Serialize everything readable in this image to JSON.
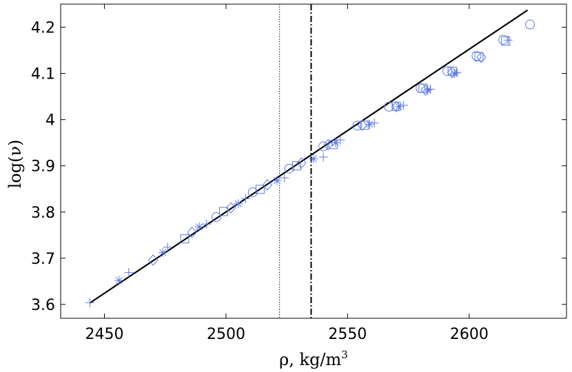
{
  "chart_data": {
    "type": "scatter",
    "title": "",
    "xlabel": "ρ, kg/m",
    "xlabel_sup": "3",
    "ylabel": "log(ν)",
    "xlim": [
      2432,
      2640
    ],
    "ylim": [
      3.57,
      4.25
    ],
    "xticks": [
      2450,
      2500,
      2550,
      2600
    ],
    "yticks": [
      3.6,
      3.7,
      3.8,
      3.9,
      4,
      4.1,
      4.2
    ],
    "ytick_labels": [
      "3.6",
      "3.7",
      "3.8",
      "3.9",
      "4",
      "4.1",
      "4.2"
    ],
    "grid": false,
    "legend": "none",
    "marker_color": "#5a78e6",
    "fit_line": {
      "color": "#000000",
      "points": [
        [
          2444,
          3.603
        ],
        [
          2624,
          4.237
        ]
      ]
    },
    "vlines": [
      {
        "name": "vline-dotted",
        "x": 2522,
        "style": "dotted",
        "color": "#000000"
      },
      {
        "name": "vline-dashdot",
        "x": 2535,
        "style": "dashdot",
        "color": "#000000"
      }
    ],
    "series": [
      {
        "marker": "plus",
        "points": [
          [
            2444,
            3.604
          ],
          [
            2460,
            3.669
          ],
          [
            2476,
            3.724
          ],
          [
            2492,
            3.774
          ],
          [
            2508,
            3.829
          ],
          [
            2524,
            3.874
          ],
          [
            2540,
            3.919
          ],
          [
            2547,
            3.956
          ],
          [
            2561,
            3.993
          ],
          [
            2573,
            4.031
          ],
          [
            2584,
            4.066
          ],
          [
            2595,
            4.102
          ],
          [
            2616,
            4.172
          ]
        ]
      },
      {
        "marker": "star",
        "points": [
          [
            2456,
            3.652
          ],
          [
            2474,
            3.712
          ],
          [
            2489,
            3.768
          ],
          [
            2505,
            3.818
          ],
          [
            2521,
            3.868
          ],
          [
            2536,
            3.915
          ],
          [
            2545,
            3.95
          ],
          [
            2559,
            3.99
          ],
          [
            2571,
            4.028
          ],
          [
            2583,
            4.064
          ],
          [
            2594,
            4.1
          ]
        ]
      },
      {
        "marker": "diamond",
        "points": [
          [
            2470,
            3.696
          ],
          [
            2486,
            3.756
          ],
          [
            2502,
            3.809
          ],
          [
            2517,
            3.859
          ],
          [
            2531,
            3.906
          ],
          [
            2542,
            3.946
          ],
          [
            2556,
            3.988
          ],
          [
            2570,
            4.028
          ],
          [
            2582,
            4.064
          ],
          [
            2593,
            4.102
          ],
          [
            2605,
            4.135
          ]
        ]
      },
      {
        "marker": "square",
        "points": [
          [
            2483,
            3.742
          ],
          [
            2499,
            3.801
          ],
          [
            2514,
            3.849
          ],
          [
            2529,
            3.9
          ],
          [
            2544,
            3.946
          ],
          [
            2557,
            3.988
          ],
          [
            2570,
            4.029
          ],
          [
            2581,
            4.068
          ],
          [
            2593,
            4.105
          ],
          [
            2604,
            4.136
          ],
          [
            2615,
            4.17
          ]
        ]
      },
      {
        "marker": "circle",
        "points": [
          [
            2496,
            3.789
          ],
          [
            2511,
            3.843
          ],
          [
            2526,
            3.894
          ],
          [
            2540,
            3.942
          ],
          [
            2554,
            3.987
          ],
          [
            2567,
            4.028
          ],
          [
            2580,
            4.068
          ],
          [
            2591,
            4.105
          ],
          [
            2603,
            4.138
          ],
          [
            2614,
            4.173
          ],
          [
            2625,
            4.206
          ]
        ]
      }
    ]
  }
}
